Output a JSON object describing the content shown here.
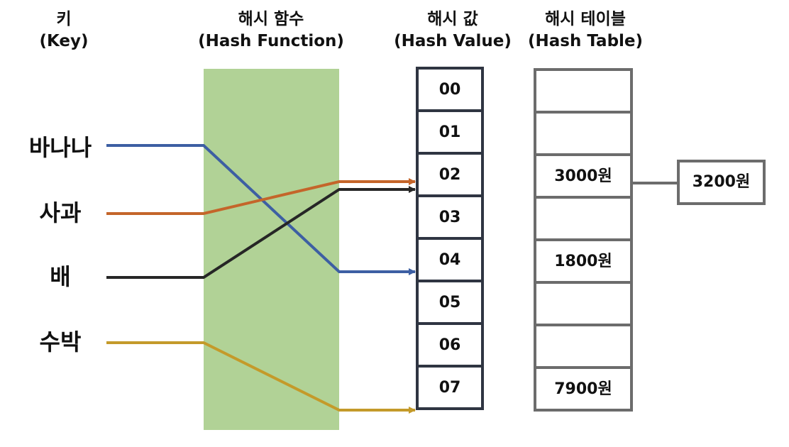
{
  "headers": {
    "key": {
      "ko": "키",
      "en": "(Key)"
    },
    "function": {
      "ko": "해시 함수",
      "en": "(Hash Function)"
    },
    "value": {
      "ko": "해시 값",
      "en": "(Hash Value)"
    },
    "table": {
      "ko": "해시 테이블",
      "en": "(Hash Table)"
    }
  },
  "keys": [
    "바나나",
    "사과",
    "배",
    "수박"
  ],
  "hash_values": [
    "00",
    "01",
    "02",
    "03",
    "04",
    "05",
    "06",
    "07"
  ],
  "table_cells": [
    "",
    "",
    "3000원",
    "",
    "1800원",
    "",
    "",
    "7900원"
  ],
  "chained_entry": "3200원",
  "mappings": [
    {
      "key": "바나나",
      "hash": "04",
      "color": "#3d5fa3"
    },
    {
      "key": "사과",
      "hash": "02",
      "color": "#c4652a"
    },
    {
      "key": "배",
      "hash": "02",
      "color": "#262626"
    },
    {
      "key": "수박",
      "hash": "07",
      "color": "#c49a2a"
    }
  ],
  "colors": {
    "function_box": "#b1d296",
    "hash_value_border": "#2f3542",
    "table_border": "#6c6c6c"
  }
}
